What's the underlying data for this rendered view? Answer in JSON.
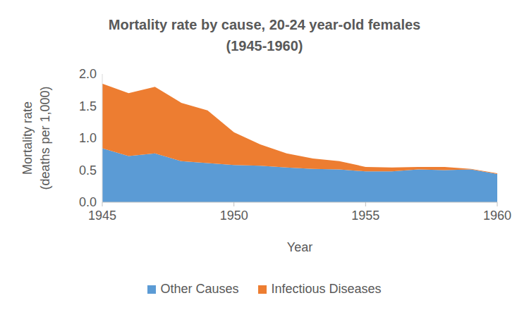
{
  "chart_data": {
    "type": "area",
    "title": "Mortality rate by cause, 20-24 year-old females\n(1945-1960)",
    "x_label": "Year",
    "y_label": "Mortality rate\n(deaths per 1,000)",
    "x": [
      1945,
      1946,
      1947,
      1948,
      1949,
      1950,
      1951,
      1952,
      1953,
      1954,
      1955,
      1956,
      1957,
      1958,
      1959,
      1960
    ],
    "series": [
      {
        "name": "Other Causes",
        "color": "#5b9bd5",
        "values": [
          0.84,
          0.72,
          0.76,
          0.64,
          0.61,
          0.58,
          0.57,
          0.54,
          0.52,
          0.51,
          0.48,
          0.48,
          0.51,
          0.5,
          0.51,
          0.44
        ]
      },
      {
        "name": "Infectious Diseases",
        "color": "#ed7d31",
        "values": [
          1.01,
          0.98,
          1.04,
          0.91,
          0.82,
          0.51,
          0.33,
          0.22,
          0.16,
          0.13,
          0.07,
          0.06,
          0.04,
          0.05,
          0.01,
          0.01
        ]
      }
    ],
    "stacked": true,
    "xlim": [
      1945,
      1960
    ],
    "xticks": [
      1945,
      1950,
      1955,
      1960
    ],
    "ylim": [
      0,
      2
    ],
    "yticks": [
      {
        "value": 0,
        "label": "0.0"
      },
      {
        "value": 0.5,
        "label": "0.5"
      },
      {
        "value": 1,
        "label": "1.0"
      },
      {
        "value": 1.5,
        "label": "1.5"
      },
      {
        "value": 2,
        "label": "2.0"
      }
    ],
    "grid": false,
    "legend": "bottom"
  }
}
